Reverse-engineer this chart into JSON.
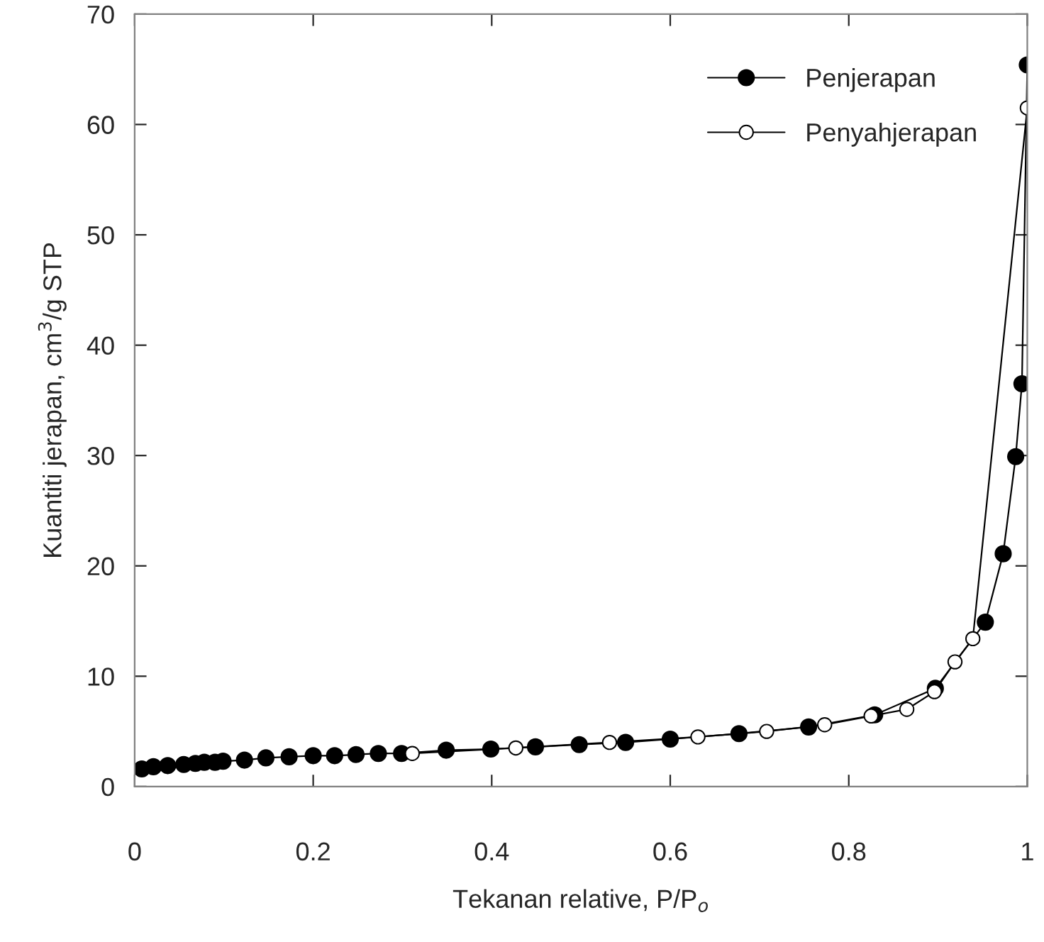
{
  "chart_data": {
    "type": "line",
    "xlabel": "Tekanan relative, P/P$_{o}$",
    "ylabel": "Kuantiti jerapan, cm$^{3}$/g STP",
    "xlim": [
      0,
      1
    ],
    "ylim": [
      0,
      70
    ],
    "xticks": [
      0,
      0.2,
      0.4,
      0.6,
      0.8,
      1
    ],
    "yticks": [
      0,
      10,
      20,
      30,
      40,
      50,
      60,
      70
    ],
    "grid": false,
    "legend": "top right",
    "series": [
      {
        "name": "Penjerapan",
        "color": "#000000",
        "marker": "circle",
        "x": [
          0.008,
          0.021,
          0.037,
          0.055,
          0.068,
          0.078,
          0.09,
          0.099,
          0.123,
          0.147,
          0.173,
          0.2,
          0.224,
          0.248,
          0.273,
          0.299,
          0.349,
          0.399,
          0.449,
          0.498,
          0.55,
          0.6,
          0.677,
          0.755,
          0.829,
          0.897,
          0.953,
          0.973,
          0.987,
          0.994,
          1.0
        ],
        "values": [
          1.6,
          1.8,
          1.9,
          2.0,
          2.1,
          2.2,
          2.2,
          2.3,
          2.4,
          2.6,
          2.7,
          2.8,
          2.8,
          2.9,
          3.0,
          3.0,
          3.3,
          3.4,
          3.6,
          3.8,
          4.0,
          4.3,
          4.8,
          5.4,
          6.5,
          8.9,
          14.9,
          21.1,
          29.9,
          36.5,
          65.4
        ]
      },
      {
        "name": "Penyahjerapan",
        "color": "#000000",
        "marker": "circle",
        "x": [
          0.311,
          0.427,
          0.532,
          0.631,
          0.708,
          0.773,
          0.825,
          0.865,
          0.896,
          0.919,
          0.939,
          1.0
        ],
        "values": [
          3.0,
          3.5,
          4.0,
          4.5,
          5.0,
          5.6,
          6.4,
          7.0,
          8.6,
          11.3,
          13.4,
          61.5
        ]
      }
    ]
  }
}
